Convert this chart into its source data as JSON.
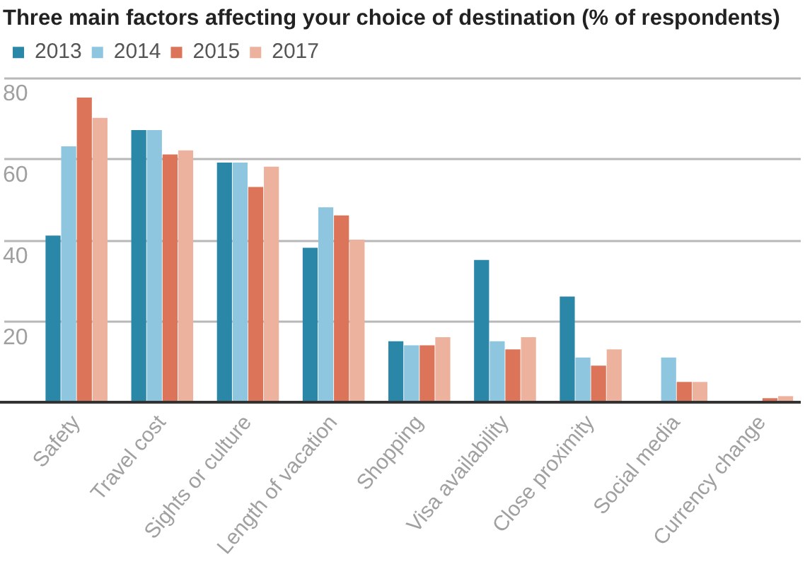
{
  "chart_data": {
    "type": "bar",
    "title": "Three main factors affecting your choice of destination (% of respondents)",
    "categories": [
      "Safety",
      "Travel cost",
      "Sights or culture",
      "Length of vacation",
      "Shopping",
      "Visa availability",
      "Close proximity",
      "Social media",
      "Currency change"
    ],
    "series": [
      {
        "name": "2013",
        "color": "#2a87a8",
        "values": [
          41,
          67,
          59,
          38,
          15,
          35,
          26,
          null,
          null
        ]
      },
      {
        "name": "2014",
        "color": "#8ec5df",
        "values": [
          63,
          67,
          59,
          48,
          14,
          15,
          11,
          11,
          null
        ]
      },
      {
        "name": "2015",
        "color": "#db7459",
        "values": [
          75,
          61,
          53,
          46,
          14,
          13,
          9,
          5,
          1
        ]
      },
      {
        "name": "2017",
        "color": "#edb29e",
        "values": [
          70,
          62,
          58,
          40,
          16,
          16,
          13,
          5,
          1.5
        ]
      }
    ],
    "ylim": [
      0,
      80
    ],
    "yticks": [
      20,
      40,
      60,
      80
    ],
    "grid": "y",
    "legend": "top left"
  }
}
